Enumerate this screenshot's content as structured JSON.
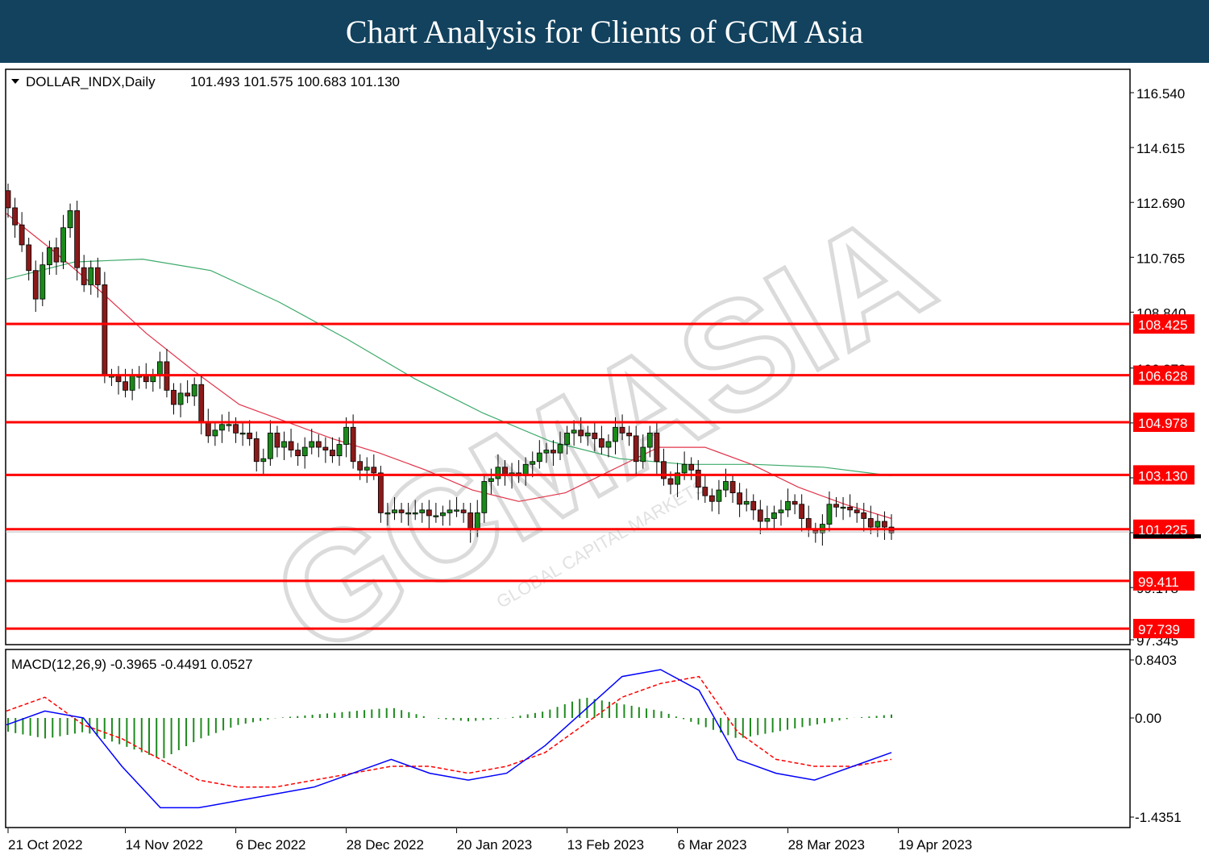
{
  "header": {
    "title": "Chart Analysis for Clients of GCM Asia"
  },
  "watermark": {
    "text": "GCMASIA",
    "subtext": "GLOBAL CAPITAL MARKETS"
  },
  "colors": {
    "banner": "#12425e",
    "bull_candle": "#1a8a1a",
    "bear_candle": "#8b1a1a",
    "ma_fast": "#e0344a",
    "ma_slow": "#3daa6a",
    "level_line": "#ff0000",
    "macd_line": "#0000ff",
    "signal_line": "#ff0000",
    "histogram": "#1f8a1f"
  },
  "chart_data": [
    {
      "type": "candlestick",
      "symbol_label": "DOLLAR_INDX,Daily",
      "ohlc_label": "101.493 101.575 100.683 101.130",
      "price_axis_ticks": [
        "116.540",
        "114.615",
        "112.690",
        "110.765",
        "108.840",
        "106.878",
        "104.953",
        "103.028",
        "101.103",
        "99.178",
        "97.345"
      ],
      "ylim": [
        97.345,
        116.54
      ],
      "x_tick_labels": [
        "21 Oct 2022",
        "14 Nov 2022",
        "6 Dec 2022",
        "28 Dec 2022",
        "20 Jan 2023",
        "13 Feb 2023",
        "6 Mar 2023",
        "28 Mar 2023",
        "19 Apr 2023"
      ],
      "x_tick_bar_index": [
        0,
        17,
        33,
        49,
        65,
        81,
        97,
        113,
        129
      ],
      "horizontal_levels": [
        "108.425",
        "106.628",
        "104.978",
        "103.130",
        "101.225",
        "99.411",
        "97.739"
      ],
      "closes": [
        112.5,
        111.9,
        111.2,
        110.3,
        109.3,
        110.5,
        111.1,
        110.6,
        111.8,
        112.4,
        110.4,
        109.8,
        110.4,
        109.8,
        106.6,
        106.6,
        106.4,
        106.1,
        106.6,
        106.6,
        106.4,
        106.6,
        107.1,
        106.1,
        105.6,
        106.0,
        105.9,
        106.3,
        105.0,
        104.5,
        104.7,
        104.9,
        104.9,
        104.6,
        104.6,
        104.4,
        103.6,
        103.7,
        104.6,
        104.1,
        104.3,
        104.0,
        103.8,
        104.1,
        104.3,
        104.1,
        104.0,
        103.8,
        104.2,
        104.8,
        103.6,
        103.3,
        103.4,
        103.2,
        101.8,
        101.8,
        101.9,
        101.8,
        101.8,
        101.8,
        101.9,
        101.7,
        101.7,
        101.8,
        101.9,
        101.9,
        101.8,
        101.2,
        101.8,
        102.9,
        103.0,
        103.4,
        103.1,
        103.2,
        103.1,
        103.5,
        103.6,
        103.9,
        104.0,
        103.9,
        104.2,
        104.6,
        104.7,
        104.5,
        104.6,
        104.4,
        104.1,
        104.3,
        104.8,
        104.6,
        104.5,
        103.6,
        104.1,
        104.6,
        103.6,
        103.0,
        102.8,
        103.2,
        103.5,
        103.3,
        102.7,
        102.4,
        102.2,
        102.6,
        102.9,
        102.5,
        102.1,
        102.2,
        101.9,
        101.5,
        101.6,
        101.8,
        101.9,
        102.2,
        102.1,
        101.6,
        101.2,
        101.1,
        101.4,
        102.1,
        102.0,
        102.0,
        101.9,
        101.8,
        101.6,
        101.3,
        101.5,
        101.3,
        101.1
      ],
      "moving_averages": [
        {
          "period_label": "fast MA (red)",
          "values_sampled": [
            112.3,
            111.0,
            109.6,
            108.1,
            106.8,
            105.6,
            105.0,
            104.4,
            103.9,
            103.3,
            102.6,
            102.2,
            102.5,
            103.3,
            104.1,
            104.1,
            103.5,
            102.7,
            102.1,
            101.6
          ]
        },
        {
          "period_label": "slow MA (green)",
          "values_sampled": [
            110.0,
            110.6,
            110.7,
            110.3,
            109.2,
            107.9,
            106.5,
            105.3,
            104.3,
            103.7,
            103.5,
            103.5,
            103.4,
            103.1
          ]
        }
      ]
    },
    {
      "type": "macd",
      "label": "MACD(12,26,9) -0.3965 -0.4491 0.0527",
      "axis_ticks": [
        "0.8403",
        "0.00",
        "-1.4351"
      ],
      "ylim": [
        -1.4351,
        0.8403
      ],
      "macd_line": [
        -0.1,
        0.1,
        0.0,
        -0.7,
        -1.3,
        -1.3,
        -1.2,
        -1.1,
        -1.0,
        -0.8,
        -0.6,
        -0.8,
        -0.9,
        -0.8,
        -0.4,
        0.1,
        0.6,
        0.7,
        0.4,
        -0.6,
        -0.8,
        -0.9,
        -0.7,
        -0.5
      ],
      "signal_line": [
        0.1,
        0.3,
        -0.1,
        -0.3,
        -0.6,
        -0.9,
        -1.0,
        -1.0,
        -0.9,
        -0.8,
        -0.7,
        -0.7,
        -0.8,
        -0.7,
        -0.5,
        -0.1,
        0.3,
        0.5,
        0.6,
        -0.2,
        -0.6,
        -0.7,
        -0.7,
        -0.6
      ],
      "histogram": [
        -0.2,
        -0.3,
        -0.2,
        -0.4,
        -0.6,
        -0.3,
        -0.1,
        0.0,
        0.05,
        0.1,
        0.15,
        0.0,
        -0.05,
        0.0,
        0.1,
        0.3,
        0.2,
        0.1,
        -0.1,
        -0.3,
        -0.2,
        -0.1,
        0.0,
        0.05
      ]
    }
  ]
}
